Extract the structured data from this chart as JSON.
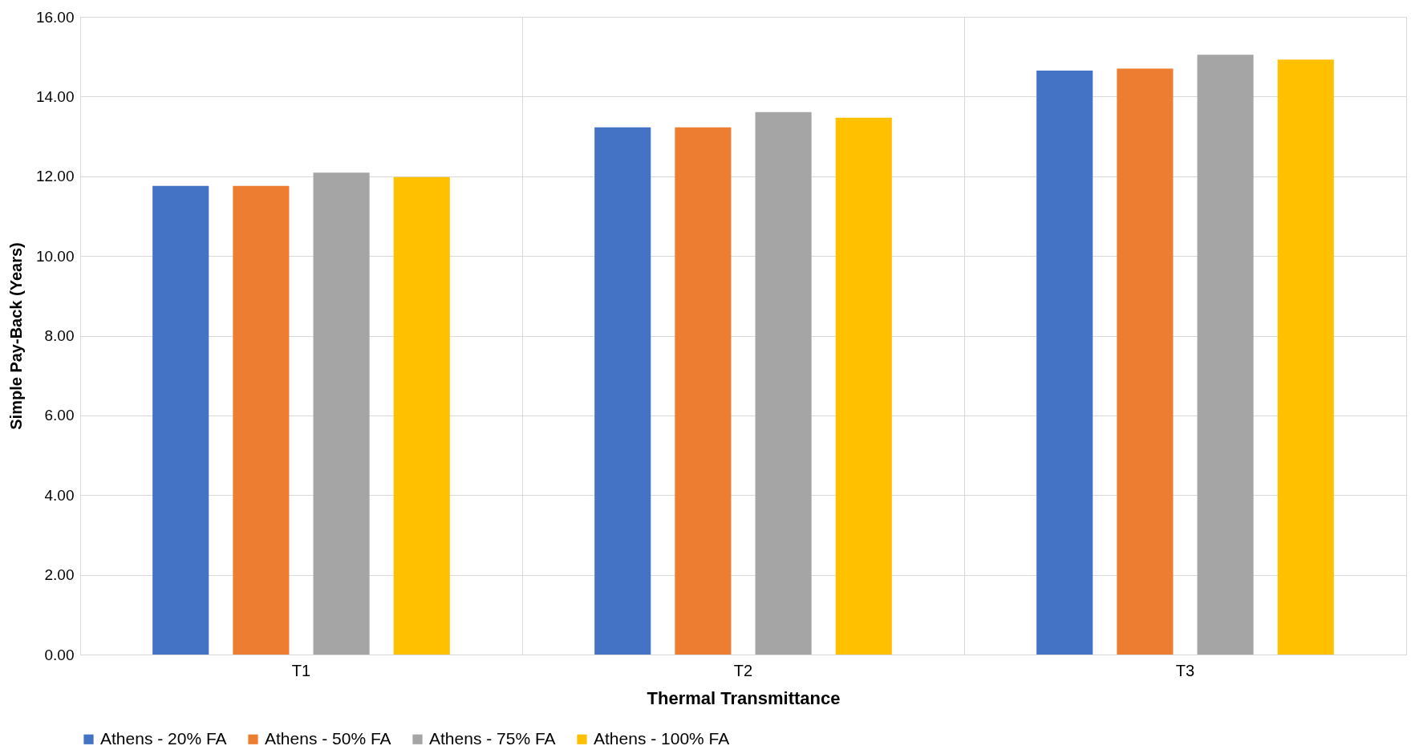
{
  "chart_data": {
    "type": "bar",
    "xlabel": "Thermal Transmittance",
    "ylabel": "Simple Pay-Back (Years)",
    "categories": [
      "T1",
      "T2",
      "T3"
    ],
    "series": [
      {
        "name": "Athens - 20% FA",
        "color": "#4472c4",
        "values": [
          11.76,
          13.23,
          14.65
        ]
      },
      {
        "name": "Athens - 50% FA",
        "color": "#ed7d31",
        "values": [
          11.76,
          13.23,
          14.7
        ]
      },
      {
        "name": "Athens - 75% FA",
        "color": "#a5a5a5",
        "values": [
          12.09,
          13.61,
          15.05
        ]
      },
      {
        "name": "Athens - 100% FA",
        "color": "#ffc000",
        "values": [
          11.98,
          13.47,
          14.93
        ]
      }
    ],
    "ylim": [
      0,
      16
    ],
    "yticks": [
      {
        "value": 0,
        "label": "0.00"
      },
      {
        "value": 2,
        "label": "2.00"
      },
      {
        "value": 4,
        "label": "4.00"
      },
      {
        "value": 6,
        "label": "6.00"
      },
      {
        "value": 8,
        "label": "8.00"
      },
      {
        "value": 10,
        "label": "10.00"
      },
      {
        "value": 12,
        "label": "12.00"
      },
      {
        "value": 14,
        "label": "14.00"
      },
      {
        "value": 16,
        "label": "16.00"
      }
    ],
    "grid": true,
    "legend": "bottom"
  }
}
